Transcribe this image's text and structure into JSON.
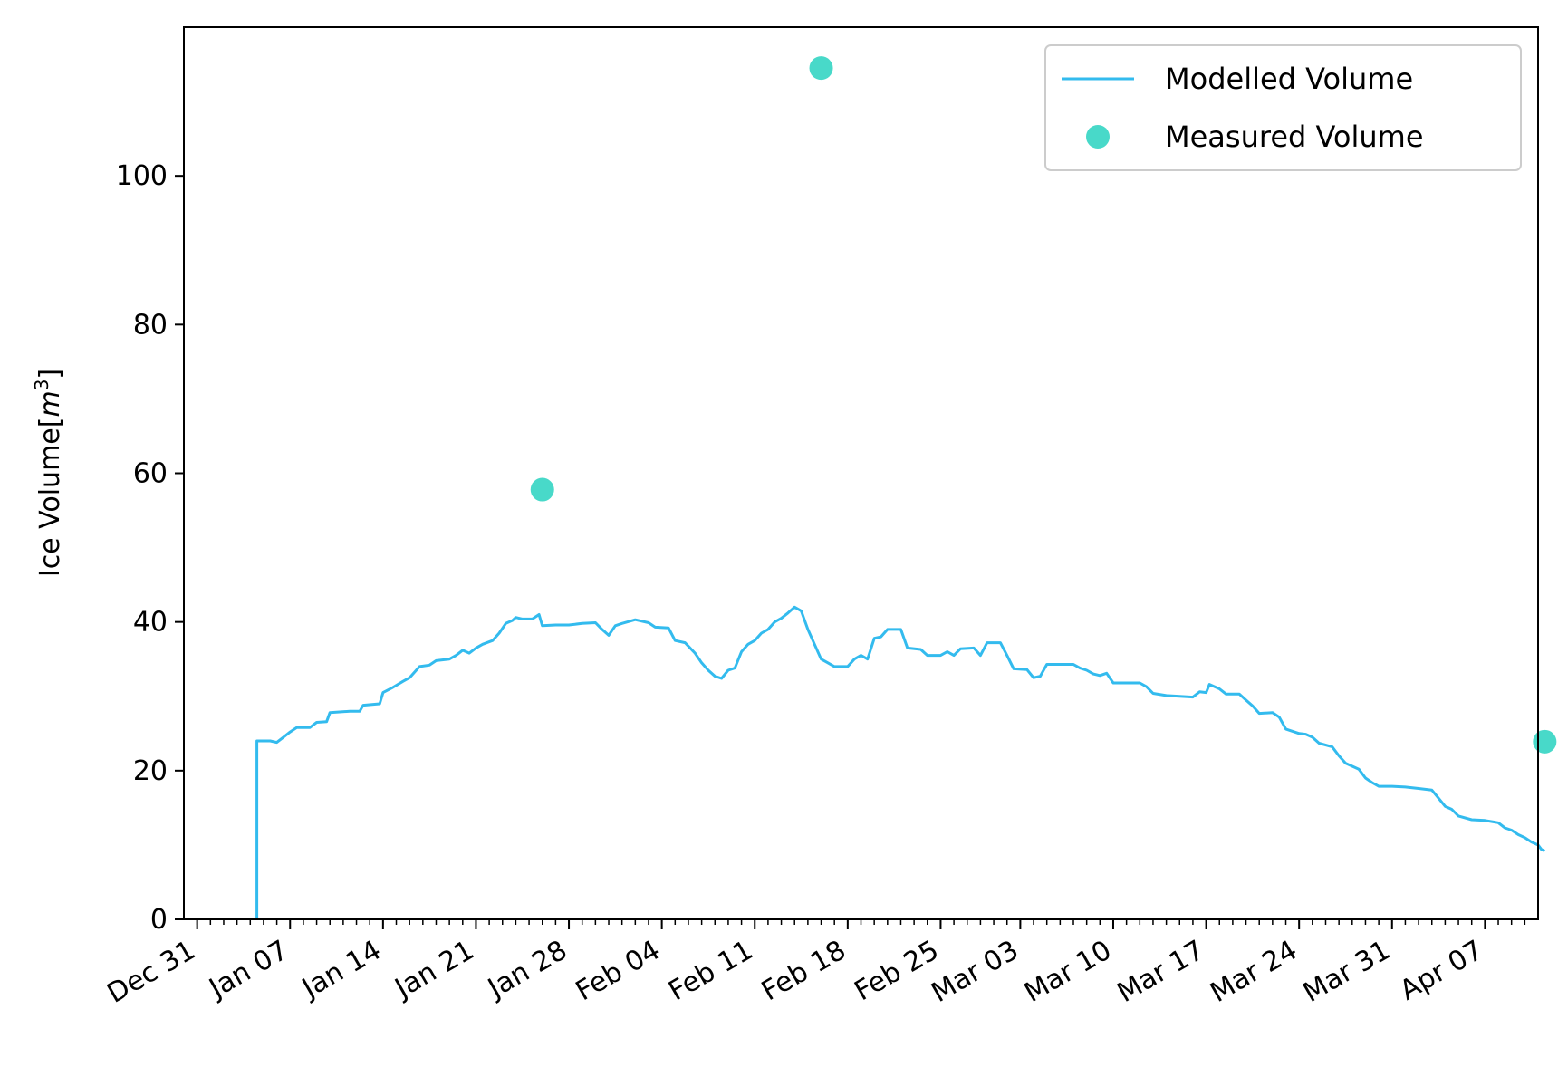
{
  "chart_data": {
    "type": "line",
    "title": "",
    "xlabel": "",
    "ylabel_base": "Ice Volume[",
    "ylabel_var": "m",
    "ylabel_sup": "3",
    "ylabel_end": "]",
    "ylim": [
      0,
      120
    ],
    "xlim": [
      "2018-12-30",
      "2019-04-11"
    ],
    "x_ticks": [
      {
        "date": "2018-12-31",
        "label": "Dec 31"
      },
      {
        "date": "2019-01-07",
        "label": "Jan 07"
      },
      {
        "date": "2019-01-14",
        "label": "Jan 14"
      },
      {
        "date": "2019-01-21",
        "label": "Jan 21"
      },
      {
        "date": "2019-01-28",
        "label": "Jan 28"
      },
      {
        "date": "2019-02-04",
        "label": "Feb 04"
      },
      {
        "date": "2019-02-11",
        "label": "Feb 11"
      },
      {
        "date": "2019-02-18",
        "label": "Feb 18"
      },
      {
        "date": "2019-02-25",
        "label": "Feb 25"
      },
      {
        "date": "2019-03-03",
        "label": "Mar 03"
      },
      {
        "date": "2019-03-10",
        "label": "Mar 10"
      },
      {
        "date": "2019-03-17",
        "label": "Mar 17"
      },
      {
        "date": "2019-03-24",
        "label": "Mar 24"
      },
      {
        "date": "2019-03-31",
        "label": "Mar 31"
      },
      {
        "date": "2019-04-07",
        "label": "Apr 07"
      }
    ],
    "y_ticks": [
      0,
      20,
      40,
      60,
      80,
      100
    ],
    "grid": false,
    "legend_position": "top-right",
    "series": [
      {
        "name": "Modelled Volume",
        "kind": "line",
        "color": "#33bbee",
        "points": [
          [
            "2019-01-04 12:00",
            0
          ],
          [
            "2019-01-04 12:00",
            24.0
          ],
          [
            "2019-01-05 12:00",
            24.0
          ],
          [
            "2019-01-06",
            23.8
          ],
          [
            "2019-01-06 12:00",
            24.5
          ],
          [
            "2019-01-07",
            25.2
          ],
          [
            "2019-01-07 12:00",
            25.8
          ],
          [
            "2019-01-08 12:00",
            25.8
          ],
          [
            "2019-01-09",
            26.5
          ],
          [
            "2019-01-09 18:00",
            26.6
          ],
          [
            "2019-01-10",
            27.8
          ],
          [
            "2019-01-11 12:00",
            28.0
          ],
          [
            "2019-01-12 06:00",
            28.0
          ],
          [
            "2019-01-12 12:00",
            28.8
          ],
          [
            "2019-01-13 18:00",
            29.0
          ],
          [
            "2019-01-14",
            30.5
          ],
          [
            "2019-01-14 18:00",
            31.2
          ],
          [
            "2019-01-15 12:00",
            32.0
          ],
          [
            "2019-01-16",
            32.5
          ],
          [
            "2019-01-16 18:00",
            34.0
          ],
          [
            "2019-01-17 12:00",
            34.2
          ],
          [
            "2019-01-18",
            34.8
          ],
          [
            "2019-01-19",
            35.0
          ],
          [
            "2019-01-19 12:00",
            35.5
          ],
          [
            "2019-01-20",
            36.2
          ],
          [
            "2019-01-20 12:00",
            35.8
          ],
          [
            "2019-01-21",
            36.5
          ],
          [
            "2019-01-21 12:00",
            37.0
          ],
          [
            "2019-01-22 06:00",
            37.5
          ],
          [
            "2019-01-22 18:00",
            38.5
          ],
          [
            "2019-01-23 06:00",
            39.8
          ],
          [
            "2019-01-23 18:00",
            40.2
          ],
          [
            "2019-01-24",
            40.6
          ],
          [
            "2019-01-24 12:00",
            40.4
          ],
          [
            "2019-01-25 06:00",
            40.4
          ],
          [
            "2019-01-25 18:00",
            41.0
          ],
          [
            "2019-01-26",
            39.5
          ],
          [
            "2019-01-27",
            39.6
          ],
          [
            "2019-01-28",
            39.6
          ],
          [
            "2019-01-29",
            39.8
          ],
          [
            "2019-01-30",
            39.9
          ],
          [
            "2019-01-30 12:00",
            39.0
          ],
          [
            "2019-01-31",
            38.2
          ],
          [
            "2019-01-31 12:00",
            39.5
          ],
          [
            "2019-02-01",
            39.8
          ],
          [
            "2019-02-02",
            40.3
          ],
          [
            "2019-02-03",
            39.9
          ],
          [
            "2019-02-03 12:00",
            39.3
          ],
          [
            "2019-02-04 12:00",
            39.2
          ],
          [
            "2019-02-05",
            37.5
          ],
          [
            "2019-02-05 18:00",
            37.2
          ],
          [
            "2019-02-06 12:00",
            35.8
          ],
          [
            "2019-02-07",
            34.5
          ],
          [
            "2019-02-07 12:00",
            33.5
          ],
          [
            "2019-02-08",
            32.7
          ],
          [
            "2019-02-08 12:00",
            32.4
          ],
          [
            "2019-02-09",
            33.5
          ],
          [
            "2019-02-09 12:00",
            33.8
          ],
          [
            "2019-02-10",
            36.0
          ],
          [
            "2019-02-10 12:00",
            37.0
          ],
          [
            "2019-02-11",
            37.5
          ],
          [
            "2019-02-11 12:00",
            38.5
          ],
          [
            "2019-02-12",
            39.0
          ],
          [
            "2019-02-12 12:00",
            40.0
          ],
          [
            "2019-02-13",
            40.5
          ],
          [
            "2019-02-13 12:00",
            41.2
          ],
          [
            "2019-02-14",
            42.0
          ],
          [
            "2019-02-14 12:00",
            41.5
          ],
          [
            "2019-02-15",
            39.0
          ],
          [
            "2019-02-15 12:00",
            37.0
          ],
          [
            "2019-02-16",
            35.0
          ],
          [
            "2019-02-16 12:00",
            34.5
          ],
          [
            "2019-02-17",
            34.0
          ],
          [
            "2019-02-18",
            34.0
          ],
          [
            "2019-02-18 12:00",
            35.0
          ],
          [
            "2019-02-19",
            35.5
          ],
          [
            "2019-02-19 12:00",
            35.0
          ],
          [
            "2019-02-20",
            37.8
          ],
          [
            "2019-02-20 12:00",
            38.0
          ],
          [
            "2019-02-21",
            39.0
          ],
          [
            "2019-02-22",
            39.0
          ],
          [
            "2019-02-22 12:00",
            36.5
          ],
          [
            "2019-02-23 12:00",
            36.3
          ],
          [
            "2019-02-24",
            35.5
          ],
          [
            "2019-02-25",
            35.5
          ],
          [
            "2019-02-25 12:00",
            36.0
          ],
          [
            "2019-02-26",
            35.5
          ],
          [
            "2019-02-26 12:00",
            36.4
          ],
          [
            "2019-02-27 12:00",
            36.5
          ],
          [
            "2019-02-28",
            35.5
          ],
          [
            "2019-02-28 12:00",
            37.2
          ],
          [
            "2019-03-01 12:00",
            37.2
          ],
          [
            "2019-03-02",
            35.5
          ],
          [
            "2019-03-02 12:00",
            33.7
          ],
          [
            "2019-03-03 12:00",
            33.6
          ],
          [
            "2019-03-04",
            32.5
          ],
          [
            "2019-03-04 12:00",
            32.7
          ],
          [
            "2019-03-05",
            34.3
          ],
          [
            "2019-03-06",
            34.3
          ],
          [
            "2019-03-07",
            34.3
          ],
          [
            "2019-03-07 12:00",
            33.8
          ],
          [
            "2019-03-08",
            33.5
          ],
          [
            "2019-03-08 12:00",
            33.0
          ],
          [
            "2019-03-09",
            32.8
          ],
          [
            "2019-03-09 12:00",
            33.1
          ],
          [
            "2019-03-10",
            31.8
          ],
          [
            "2019-03-11",
            31.8
          ],
          [
            "2019-03-12",
            31.8
          ],
          [
            "2019-03-12 12:00",
            31.3
          ],
          [
            "2019-03-13",
            30.4
          ],
          [
            "2019-03-14",
            30.1
          ],
          [
            "2019-03-15",
            30.0
          ],
          [
            "2019-03-16",
            29.9
          ],
          [
            "2019-03-16 12:00",
            30.6
          ],
          [
            "2019-03-17",
            30.5
          ],
          [
            "2019-03-17 06:00",
            31.6
          ],
          [
            "2019-03-18",
            31.0
          ],
          [
            "2019-03-18 12:00",
            30.3
          ],
          [
            "2019-03-19 12:00",
            30.3
          ],
          [
            "2019-03-20",
            29.5
          ],
          [
            "2019-03-20 12:00",
            28.7
          ],
          [
            "2019-03-21",
            27.7
          ],
          [
            "2019-03-22",
            27.8
          ],
          [
            "2019-03-22 12:00",
            27.2
          ],
          [
            "2019-03-23",
            25.6
          ],
          [
            "2019-03-24",
            25.0
          ],
          [
            "2019-03-24 12:00",
            24.9
          ],
          [
            "2019-03-25",
            24.5
          ],
          [
            "2019-03-25 12:00",
            23.7
          ],
          [
            "2019-03-26 12:00",
            23.2
          ],
          [
            "2019-03-27",
            22.0
          ],
          [
            "2019-03-27 12:00",
            21.0
          ],
          [
            "2019-03-28 12:00",
            20.2
          ],
          [
            "2019-03-29",
            19.0
          ],
          [
            "2019-03-29 12:00",
            18.4
          ],
          [
            "2019-03-30",
            17.9
          ],
          [
            "2019-03-31",
            17.9
          ],
          [
            "2019-04-01",
            17.8
          ],
          [
            "2019-04-02",
            17.6
          ],
          [
            "2019-04-03",
            17.4
          ],
          [
            "2019-04-03 12:00",
            16.3
          ],
          [
            "2019-04-04",
            15.2
          ],
          [
            "2019-04-04 12:00",
            14.8
          ],
          [
            "2019-04-05",
            13.9
          ],
          [
            "2019-04-06",
            13.4
          ],
          [
            "2019-04-07",
            13.3
          ],
          [
            "2019-04-08",
            13.0
          ],
          [
            "2019-04-08 12:00",
            12.3
          ],
          [
            "2019-04-09",
            12.0
          ],
          [
            "2019-04-09 12:00",
            11.4
          ],
          [
            "2019-04-10",
            11.0
          ],
          [
            "2019-04-10 12:00",
            10.4
          ],
          [
            "2019-04-11",
            10.0
          ],
          [
            "2019-04-11 06:00",
            9.4
          ],
          [
            "2019-04-11 12:00",
            9.2
          ]
        ]
      },
      {
        "name": "Measured Volume",
        "kind": "scatter",
        "color": "#48d9c9",
        "points": [
          [
            "2019-01-26",
            57.8
          ],
          [
            "2019-02-16",
            114.5
          ],
          [
            "2019-04-11 12:00",
            23.9
          ]
        ]
      }
    ]
  }
}
